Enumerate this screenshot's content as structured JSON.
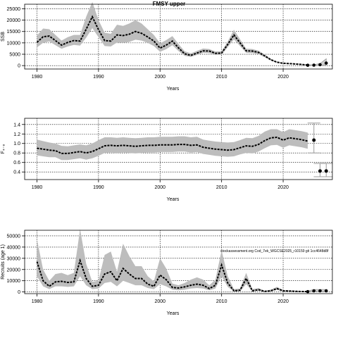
{
  "figure_title": "FMSY upper",
  "watermark": "stockassessment.org Cod_7ek_WGCSE2025_r10159 git 1cc4648d8f",
  "chart_data": [
    {
      "type": "area",
      "title": "FMSY upper",
      "xlabel": "Years",
      "ylabel": "SSB",
      "xlim": [
        1978,
        2028
      ],
      "ylim": [
        -1500,
        27000
      ],
      "xticks": [
        1980,
        1990,
        2000,
        2010,
        2020
      ],
      "yticks": [
        0,
        5000,
        10000,
        15000,
        20000,
        25000
      ],
      "ytick_labels": [
        "0",
        "5000",
        "10000",
        "15000",
        "20000",
        "25000"
      ],
      "grid": true,
      "x": [
        1980,
        1981,
        1982,
        1983,
        1984,
        1985,
        1986,
        1987,
        1988,
        1989,
        1990,
        1991,
        1992,
        1993,
        1994,
        1995,
        1996,
        1997,
        1998,
        1999,
        2000,
        2001,
        2002,
        2003,
        2004,
        2005,
        2006,
        2007,
        2008,
        2009,
        2010,
        2011,
        2012,
        2013,
        2014,
        2015,
        2016,
        2017,
        2018,
        2019,
        2020,
        2021,
        2022,
        2023,
        2024
      ],
      "series": [
        {
          "values": [
            10200,
            12700,
            13000,
            11000,
            9000,
            10200,
            11000,
            10800,
            16000,
            21500,
            15800,
            11000,
            10800,
            13500,
            13200,
            13800,
            15000,
            14200,
            12600,
            10800,
            7700,
            9000,
            10800,
            7800,
            5200,
            4500,
            5500,
            6500,
            6400,
            5400,
            5500,
            9300,
            13500,
            10000,
            6500,
            6400,
            5800,
            4300,
            2600,
            1500,
            1000,
            900,
            700,
            500,
            250
          ]
        },
        {
          "name": "upper",
          "values": [
            13200,
            16300,
            16000,
            13500,
            11000,
            12500,
            13500,
            13500,
            21500,
            28000,
            20000,
            14500,
            14000,
            18000,
            17500,
            18500,
            20000,
            18500,
            16000,
            13500,
            9800,
            11200,
            13000,
            9500,
            6300,
            5400,
            6500,
            7500,
            7300,
            6200,
            6300,
            10600,
            15800,
            11600,
            7400,
            7300,
            6600,
            4900,
            3000,
            1700,
            1150,
            1050,
            850,
            700,
            500
          ]
        },
        {
          "name": "lower",
          "values": [
            8000,
            10000,
            10600,
            9000,
            7400,
            8400,
            9100,
            8800,
            12300,
            16500,
            12500,
            8600,
            8400,
            10200,
            10000,
            10400,
            11400,
            11000,
            10000,
            8600,
            6100,
            7200,
            9000,
            6400,
            4300,
            3800,
            4700,
            5600,
            5500,
            4700,
            4800,
            8100,
            11500,
            8600,
            5600,
            5500,
            5000,
            3700,
            2200,
            1300,
            850,
            750,
            550,
            350,
            150
          ]
        }
      ],
      "projection": {
        "x": [
          2024,
          2025,
          2026,
          2027
        ],
        "values": [
          150,
          200,
          400,
          1100
        ],
        "upper": [
          300,
          400,
          900,
          3000
        ],
        "lower": [
          50,
          80,
          100,
          200
        ]
      }
    },
    {
      "type": "area",
      "xlabel": "Years",
      "ylabel": "F₄₋₈",
      "xlim": [
        1978,
        2028
      ],
      "ylim": [
        0.24,
        1.53
      ],
      "xticks": [
        1980,
        1990,
        2000,
        2010,
        2020
      ],
      "yticks": [
        0.4,
        0.6,
        0.8,
        1.0,
        1.2,
        1.4
      ],
      "ytick_labels": [
        "0.4",
        "0.6",
        "0.8",
        "1.0",
        "1.2",
        "1.4"
      ],
      "grid": true,
      "x": [
        1980,
        1981,
        1982,
        1983,
        1984,
        1985,
        1986,
        1987,
        1988,
        1989,
        1990,
        1991,
        1992,
        1993,
        1994,
        1995,
        1996,
        1997,
        1998,
        1999,
        2000,
        2001,
        2002,
        2003,
        2004,
        2005,
        2006,
        2007,
        2008,
        2009,
        2010,
        2011,
        2012,
        2013,
        2014,
        2015,
        2016,
        2017,
        2018,
        2019,
        2020,
        2021,
        2022,
        2023,
        2024
      ],
      "series": [
        {
          "values": [
            0.9,
            0.88,
            0.86,
            0.85,
            0.79,
            0.79,
            0.81,
            0.83,
            0.8,
            0.83,
            0.89,
            0.95,
            0.96,
            0.95,
            0.96,
            0.95,
            0.94,
            0.95,
            0.96,
            0.96,
            0.97,
            0.97,
            0.97,
            0.98,
            0.98,
            0.96,
            0.97,
            0.92,
            0.9,
            0.88,
            0.87,
            0.86,
            0.87,
            0.91,
            0.95,
            0.94,
            0.98,
            1.06,
            1.12,
            1.13,
            1.07,
            1.12,
            1.1,
            1.08,
            1.05
          ]
        },
        {
          "name": "upper",
          "values": [
            1.08,
            1.05,
            1.02,
            1.0,
            0.95,
            0.94,
            0.96,
            0.98,
            0.96,
            1.0,
            1.07,
            1.13,
            1.13,
            1.12,
            1.13,
            1.12,
            1.11,
            1.12,
            1.13,
            1.13,
            1.14,
            1.14,
            1.14,
            1.15,
            1.15,
            1.13,
            1.14,
            1.08,
            1.06,
            1.04,
            1.03,
            1.02,
            1.03,
            1.07,
            1.12,
            1.11,
            1.16,
            1.25,
            1.3,
            1.3,
            1.24,
            1.3,
            1.28,
            1.26,
            1.23
          ]
        },
        {
          "name": "lower",
          "values": [
            0.75,
            0.73,
            0.71,
            0.71,
            0.65,
            0.65,
            0.67,
            0.69,
            0.66,
            0.69,
            0.74,
            0.8,
            0.81,
            0.8,
            0.81,
            0.8,
            0.79,
            0.8,
            0.81,
            0.81,
            0.82,
            0.82,
            0.82,
            0.83,
            0.83,
            0.81,
            0.82,
            0.78,
            0.76,
            0.74,
            0.73,
            0.72,
            0.73,
            0.77,
            0.8,
            0.79,
            0.83,
            0.9,
            0.96,
            0.97,
            0.91,
            0.96,
            0.94,
            0.92,
            0.89
          ]
        }
      ],
      "projection_points": [
        {
          "x": 2025,
          "value": 1.07,
          "lower": 0.8,
          "upper": 1.43
        },
        {
          "x": 2026,
          "value": 0.42,
          "lower": 0.3,
          "upper": 0.58
        },
        {
          "x": 2027,
          "value": 0.42,
          "lower": 0.3,
          "upper": 0.58
        }
      ]
    },
    {
      "type": "area",
      "xlabel": "Years",
      "ylabel": "Recruits (age 1)",
      "xlim": [
        1978,
        2028
      ],
      "ylim": [
        -1500,
        55000
      ],
      "xticks": [
        1980,
        1990,
        2000,
        2010,
        2020
      ],
      "yticks": [
        0,
        10000,
        20000,
        30000,
        40000,
        50000
      ],
      "ytick_labels": [
        "0",
        "10000",
        "20000",
        "30000",
        "40000",
        "50000"
      ],
      "grid": true,
      "x": [
        1980,
        1981,
        1982,
        1983,
        1984,
        1985,
        1986,
        1987,
        1988,
        1989,
        1990,
        1991,
        1992,
        1993,
        1994,
        1995,
        1996,
        1997,
        1998,
        1999,
        2000,
        2001,
        2002,
        2003,
        2004,
        2005,
        2006,
        2007,
        2008,
        2009,
        2010,
        2011,
        2012,
        2013,
        2014,
        2015,
        2016,
        2017,
        2018,
        2019,
        2020,
        2021,
        2022,
        2023,
        2024
      ],
      "series": [
        {
          "values": [
            27000,
            10000,
            5000,
            9000,
            9500,
            8500,
            9000,
            28000,
            12000,
            5000,
            6000,
            16000,
            18000,
            10000,
            21000,
            16000,
            12000,
            12000,
            7000,
            5000,
            15000,
            11000,
            4000,
            3500,
            4500,
            6000,
            7000,
            6000,
            3000,
            6000,
            24000,
            8000,
            1000,
            1500,
            12000,
            1000,
            2000,
            500,
            1000,
            3000,
            1000,
            800,
            600,
            400,
            300
          ]
        },
        {
          "name": "upper",
          "values": [
            47000,
            20000,
            10000,
            16000,
            17000,
            15000,
            17000,
            56000,
            25000,
            9000,
            10000,
            33000,
            36000,
            18000,
            43000,
            32000,
            23000,
            23000,
            14000,
            9500,
            30000,
            21000,
            7500,
            6000,
            8000,
            11000,
            13000,
            11000,
            6000,
            11000,
            37000,
            14000,
            2500,
            3000,
            17000,
            2500,
            3500,
            1000,
            2000,
            4500,
            1800,
            1400,
            1100,
            800,
            600
          ]
        },
        {
          "name": "lower",
          "values": [
            14000,
            5000,
            2500,
            5000,
            5000,
            4500,
            5000,
            14000,
            6000,
            2500,
            3000,
            8000,
            9000,
            5000,
            10000,
            8000,
            6000,
            6000,
            3500,
            2500,
            7000,
            5000,
            2000,
            1500,
            2000,
            3000,
            3500,
            3000,
            1500,
            3000,
            14000,
            4500,
            400,
            600,
            7000,
            400,
            1000,
            200,
            400,
            1800,
            500,
            400,
            300,
            200,
            100
          ]
        }
      ],
      "projection": {
        "x": [
          2024,
          2025,
          2026,
          2027
        ],
        "values": [
          300,
          1000,
          1000,
          1000
        ],
        "upper": [
          800,
          2200,
          2200,
          2200
        ],
        "lower": [
          100,
          400,
          400,
          400
        ]
      }
    }
  ]
}
